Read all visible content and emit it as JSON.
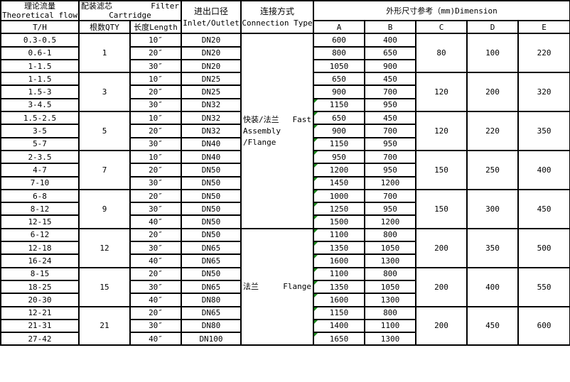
{
  "header": {
    "flow_cn": "理论流量",
    "flow_en": "Theoretical flow",
    "cartridge_cn": "配装滤芯",
    "cartridge_en1": "Filter",
    "cartridge_en2": "Cartridge",
    "inlet_cn": "进出口径",
    "inlet_en": "Inlet/Outlet",
    "conn_cn": "连接方式",
    "conn_en": "Connection Type",
    "dimension": "外形尺寸参考（mm)Dimension",
    "unit": "T/H",
    "qty": "根数QTY",
    "length": "长度Length",
    "dim_cols": [
      "A",
      "B",
      "C",
      "D",
      "E"
    ]
  },
  "connections": [
    {
      "cn": "快装/法兰",
      "en1": "Fast",
      "en2": "Assembly /Flange",
      "groups": 5
    },
    {
      "cn": "法兰",
      "en1": "Flange",
      "en2": "",
      "groups": 3
    }
  ],
  "groups": [
    {
      "qty": "1",
      "C": "80",
      "D": "100",
      "E": "220",
      "rows": [
        {
          "flow": "0.3-0.5",
          "length": "10″",
          "dn": "DN20",
          "A": "600",
          "B": "400"
        },
        {
          "flow": "0.6-1",
          "length": "20″",
          "dn": "DN20",
          "A": "800",
          "B": "650"
        },
        {
          "flow": "1-1.5",
          "length": "30″",
          "dn": "DN20",
          "A": "1050",
          "B": "900"
        }
      ]
    },
    {
      "qty": "3",
      "C": "120",
      "D": "200",
      "E": "320",
      "rows": [
        {
          "flow": "1-1.5",
          "length": "10″",
          "dn": "DN25",
          "A": "650",
          "B": "450"
        },
        {
          "flow": "1.5-3",
          "length": "20″",
          "dn": "DN25",
          "A": "900",
          "B": "700"
        },
        {
          "flow": "3-4.5",
          "length": "30″",
          "dn": "DN32",
          "A": "1150",
          "B": "950"
        }
      ]
    },
    {
      "qty": "5",
      "C": "120",
      "D": "220",
      "E": "350",
      "rows": [
        {
          "flow": "1.5-2.5",
          "length": "10″",
          "dn": "DN32",
          "A": "650",
          "B": "450"
        },
        {
          "flow": "3-5",
          "length": "20″",
          "dn": "DN32",
          "A": "900",
          "B": "700"
        },
        {
          "flow": "5-7",
          "length": "30″",
          "dn": "DN40",
          "A": "1150",
          "B": "950"
        }
      ]
    },
    {
      "qty": "7",
      "C": "150",
      "D": "250",
      "E": "400",
      "rows": [
        {
          "flow": "2-3.5",
          "length": "10″",
          "dn": "DN40",
          "A": "950",
          "B": "700"
        },
        {
          "flow": "4-7",
          "length": "20″",
          "dn": "DN50",
          "A": "1200",
          "B": "950"
        },
        {
          "flow": "7-10",
          "length": "30″",
          "dn": "DN50",
          "A": "1450",
          "B": "1200"
        }
      ]
    },
    {
      "qty": "9",
      "C": "150",
      "D": "300",
      "E": "450",
      "rows": [
        {
          "flow": "6-8",
          "length": "20″",
          "dn": "DN50",
          "A": "1000",
          "B": "700"
        },
        {
          "flow": "8-12",
          "length": "30″",
          "dn": "DN50",
          "A": "1250",
          "B": "950"
        },
        {
          "flow": "12-15",
          "length": "40″",
          "dn": "DN50",
          "A": "1500",
          "B": "1200"
        }
      ]
    },
    {
      "qty": "12",
      "C": "200",
      "D": "350",
      "E": "500",
      "rows": [
        {
          "flow": "6-12",
          "length": "20″",
          "dn": "DN50",
          "A": "1100",
          "B": "800"
        },
        {
          "flow": "12-18",
          "length": "30″",
          "dn": "DN65",
          "A": "1350",
          "B": "1050"
        },
        {
          "flow": "16-24",
          "length": "40″",
          "dn": "DN65",
          "A": "1600",
          "B": "1300"
        }
      ]
    },
    {
      "qty": "15",
      "C": "200",
      "D": "400",
      "E": "550",
      "rows": [
        {
          "flow": "8-15",
          "length": "20″",
          "dn": "DN50",
          "A": "1100",
          "B": "800"
        },
        {
          "flow": "18-25",
          "length": "30″",
          "dn": "DN65",
          "A": "1350",
          "B": "1050"
        },
        {
          "flow": "20-30",
          "length": "40″",
          "dn": "DN80",
          "A": "1600",
          "B": "1300"
        }
      ]
    },
    {
      "qty": "21",
      "C": "200",
      "D": "450",
      "E": "600",
      "rows": [
        {
          "flow": "12-21",
          "length": "20″",
          "dn": "DN65",
          "A": "1150",
          "B": "800"
        },
        {
          "flow": "21-31",
          "length": "30″",
          "dn": "DN80",
          "A": "1400",
          "B": "1100"
        },
        {
          "flow": "27-42",
          "length": "40″",
          "dn": "DN100",
          "A": "1650",
          "B": "1300"
        }
      ]
    }
  ],
  "colors": {
    "comment_marker": "#1a8a1a",
    "border": "#000000"
  }
}
